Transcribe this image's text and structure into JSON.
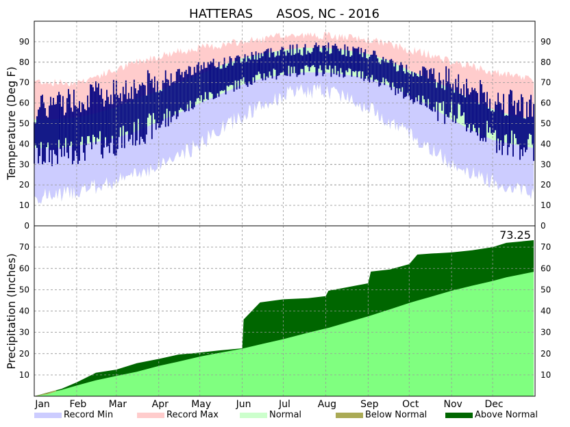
{
  "title": "HATTERAS      ASOS, NC - 2016",
  "colors": {
    "record_min": "#ccccff",
    "record_max": "#ffcccc",
    "normal": "#ccffcc",
    "observed": "#000080",
    "below_normal": "#aaaa55",
    "above_normal": "#006600",
    "normal_precip": "#80ff80",
    "grid": "#999999"
  },
  "legend": [
    {
      "label": "Record Min",
      "color": "#ccccff"
    },
    {
      "label": "Record Max",
      "color": "#ffcccc"
    },
    {
      "label": "Normal",
      "color": "#ccffcc"
    },
    {
      "label": "Below Normal",
      "color": "#aaaa55"
    },
    {
      "label": "Above Normal",
      "color": "#006600"
    }
  ],
  "chart_data": [
    {
      "type": "area",
      "panel": "temperature",
      "ylabel": "Temperature (Deg F)",
      "ylim": [
        0,
        100
      ],
      "yticks": [
        0,
        10,
        20,
        30,
        40,
        50,
        60,
        70,
        80,
        90
      ],
      "grid": true,
      "x_months": [
        "Jan",
        "Feb",
        "Mar",
        "Apr",
        "May",
        "Jun",
        "Jul",
        "Aug",
        "Sep",
        "Oct",
        "Nov",
        "Dec"
      ],
      "x_dates": [
        "01-01",
        "01-15",
        "02-01",
        "02-15",
        "03-01",
        "03-15",
        "04-01",
        "04-15",
        "05-01",
        "05-15",
        "06-01",
        "06-15",
        "07-01",
        "07-15",
        "08-01",
        "08-15",
        "09-01",
        "09-15",
        "10-01",
        "10-15",
        "11-01",
        "11-15",
        "12-01",
        "12-15",
        "12-31"
      ],
      "series": [
        {
          "name": "Record Max",
          "values": [
            71,
            70,
            70,
            73,
            76,
            80,
            83,
            85,
            87,
            88,
            90,
            91,
            93,
            93,
            93,
            92,
            91,
            89,
            86,
            84,
            80,
            78,
            75,
            73,
            72
          ]
        },
        {
          "name": "Record Min",
          "values": [
            14,
            15,
            17,
            19,
            22,
            25,
            30,
            34,
            40,
            47,
            54,
            58,
            64,
            66,
            66,
            64,
            58,
            52,
            45,
            38,
            31,
            26,
            22,
            19,
            16
          ]
        },
        {
          "name": "Normal High",
          "values": [
            52,
            52,
            53,
            55,
            58,
            62,
            66,
            70,
            74,
            78,
            82,
            84,
            86,
            87,
            87,
            86,
            84,
            81,
            76,
            72,
            67,
            62,
            57,
            54,
            52
          ]
        },
        {
          "name": "Normal Low",
          "values": [
            38,
            38,
            39,
            41,
            43,
            46,
            51,
            55,
            60,
            64,
            69,
            72,
            74,
            75,
            75,
            74,
            72,
            69,
            64,
            59,
            52,
            47,
            42,
            40,
            38
          ]
        },
        {
          "name": "Observed High",
          "values": [
            56,
            60,
            62,
            64,
            66,
            68,
            71,
            74,
            78,
            79,
            82,
            84,
            86,
            86,
            87,
            86,
            84,
            80,
            76,
            75,
            71,
            67,
            61,
            60,
            58
          ]
        },
        {
          "name": "Observed Low",
          "values": [
            34,
            35,
            37,
            39,
            41,
            45,
            50,
            55,
            62,
            65,
            70,
            73,
            75,
            76,
            76,
            75,
            73,
            69,
            63,
            60,
            55,
            49,
            43,
            40,
            38
          ]
        }
      ]
    },
    {
      "type": "area",
      "panel": "precipitation",
      "ylabel": "Precipitation (Inches)",
      "ylim": [
        0,
        80
      ],
      "yticks": [
        10,
        20,
        30,
        40,
        50,
        60,
        70
      ],
      "grid": true,
      "annotation": "73.25",
      "x_months": [
        "Jan",
        "Feb",
        "Mar",
        "Apr",
        "May",
        "Jun",
        "Jul",
        "Aug",
        "Sep",
        "Oct",
        "Nov",
        "Dec"
      ],
      "x_day": [
        0,
        20,
        31,
        45,
        60,
        75,
        91,
        105,
        121,
        135,
        152,
        153,
        165,
        182,
        200,
        213,
        215,
        244,
        246,
        260,
        274,
        280,
        290,
        305,
        320,
        335,
        345,
        365
      ],
      "series": [
        {
          "name": "Observed Accumulated",
          "values": [
            0,
            3.5,
            6.5,
            11.0,
            12.5,
            15.5,
            17.5,
            19.5,
            20.5,
            21.5,
            22.5,
            36.0,
            44.0,
            45.5,
            46.0,
            47.0,
            49.5,
            53.0,
            58.5,
            59.5,
            62.0,
            66.5,
            67.0,
            67.5,
            68.5,
            70.0,
            72.0,
            73.25
          ]
        },
        {
          "name": "Normal Accumulated",
          "values": [
            0,
            3.0,
            5.0,
            7.5,
            9.5,
            11.5,
            14.2,
            16.2,
            18.6,
            20.3,
            22.3,
            22.5,
            24.3,
            26.8,
            29.8,
            31.8,
            32.1,
            37.5,
            37.9,
            40.8,
            43.8,
            44.9,
            46.7,
            49.5,
            51.9,
            54.1,
            55.8,
            58.4
          ]
        }
      ]
    }
  ]
}
